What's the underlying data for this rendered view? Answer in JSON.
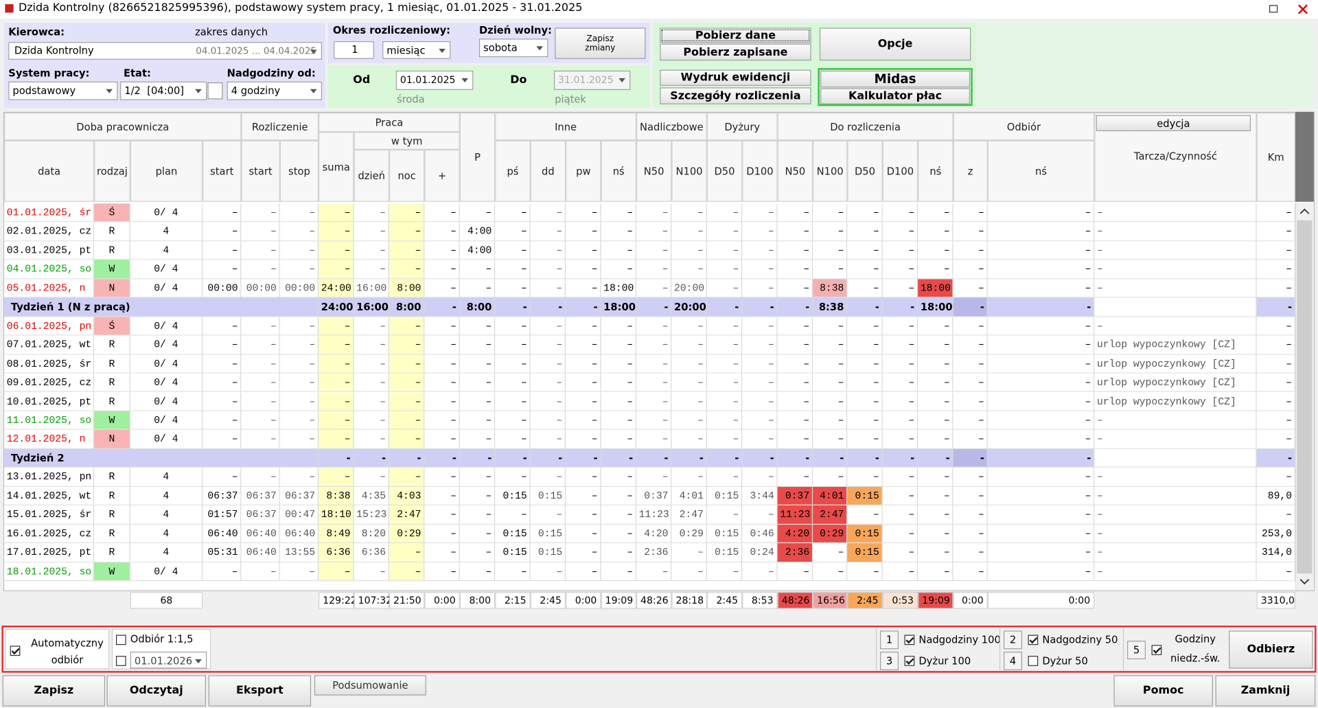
{
  "form": {
    "title": "Dzida Kontrolny (8266521825995396), podstawowy system pracy, 1 miesiąc, 01.01.2025 - 31.01.2025",
    "driver": {
      "label": "Kierowca:",
      "range_label": "zakres danych",
      "name": "Dzida Kontrolny",
      "range": "04.01.2025 ... 04.04.2025"
    },
    "system": {
      "label": "System pracy:",
      "value": "podstawowy"
    },
    "etat": {
      "label": "Etat:",
      "value": "1/2  [04:00]"
    },
    "overtime": {
      "label": "Nadgodziny od:",
      "value": "4 godziny"
    },
    "period": {
      "label": "Okres rozliczeniowy:",
      "count": "1",
      "unit": "miesiąc"
    },
    "day_off": {
      "label": "Dzień wolny:",
      "value": "sobota"
    },
    "save_changes": "Zapisz zmiany",
    "from": {
      "label": "Od",
      "date": "01.01.2025",
      "weekday": "środa"
    },
    "to": {
      "label": "Do",
      "date": "31.01.2025",
      "weekday": "piątek"
    },
    "buttons": {
      "fetch": "Pobierz dane",
      "fetch_saved": "Pobierz zapisane",
      "options": "Opcje",
      "print": "Wydruk ewidencji",
      "details": "Szczegóły rozliczenia",
      "midas": "Midas",
      "payroll": "Kalkulator płac"
    }
  },
  "table": {
    "groups": [
      {
        "label": "Doba pracownicza",
        "from": 0,
        "to": 3
      },
      {
        "label": "Rozliczenie",
        "from": 4,
        "to": 5
      },
      {
        "label": "Praca",
        "from": 6,
        "to": 9
      },
      {
        "label": "Inne",
        "from": 11,
        "to": 14
      },
      {
        "label": "Nadliczbowe",
        "from": 15,
        "to": 16
      },
      {
        "label": "Dyżury",
        "from": 17,
        "to": 18
      },
      {
        "label": "Do rozliczenia",
        "from": 19,
        "to": 23
      },
      {
        "label": "Odbiór",
        "from": 24,
        "to": 25
      }
    ],
    "sub_group": {
      "label": "w tym",
      "from": 7,
      "to": 9
    },
    "edit_button": "edycja",
    "columns": [
      "data",
      "rodzaj",
      "plan",
      "start",
      "start",
      "stop",
      "suma",
      "dzień",
      "noc",
      "+",
      "P",
      "pś",
      "dd",
      "pw",
      "nś",
      "N50",
      "N100",
      "D50",
      "D100",
      "N50",
      "N100",
      "D50",
      "D100",
      "nś",
      "z",
      "nś",
      "Tarcza/Czynność",
      "Km"
    ],
    "rows": [
      {
        "tone": "holiday",
        "cells": [
          "01.01.2025, śr",
          "Ś",
          "0/ 4",
          "–",
          "–",
          "–",
          "–",
          "–",
          "–",
          "–",
          "–",
          "–",
          "–",
          "–",
          "–",
          "–",
          "–",
          "–",
          "–",
          "–",
          "–",
          "–",
          "–",
          "–",
          "–",
          "–",
          "–",
          "–"
        ]
      },
      {
        "tone": "work",
        "cells": [
          "02.01.2025, cz",
          "R",
          "4",
          "–",
          "–",
          "–",
          "–",
          "–",
          "–",
          "–",
          "4:00",
          "–",
          "–",
          "–",
          "–",
          "–",
          "–",
          "–",
          "–",
          "–",
          "–",
          "–",
          "–",
          "–",
          "–",
          "–",
          "–",
          "–"
        ]
      },
      {
        "tone": "work",
        "cells": [
          "03.01.2025, pt",
          "R",
          "4",
          "–",
          "–",
          "–",
          "–",
          "–",
          "–",
          "–",
          "4:00",
          "–",
          "–",
          "–",
          "–",
          "–",
          "–",
          "–",
          "–",
          "–",
          "–",
          "–",
          "–",
          "–",
          "–",
          "–",
          "–",
          "–"
        ]
      },
      {
        "tone": "free",
        "cells": [
          "04.01.2025, so",
          "W",
          "0/ 4",
          "–",
          "–",
          "–",
          "–",
          "–",
          "–",
          "–",
          "–",
          "–",
          "–",
          "–",
          "–",
          "–",
          "–",
          "–",
          "–",
          "–",
          "–",
          "–",
          "–",
          "–",
          "–",
          "–",
          "–",
          "–"
        ]
      },
      {
        "tone": "holiday",
        "cells": [
          "05.01.2025, n",
          "N",
          "0/ 4",
          "00:00",
          "00:00",
          "00:00",
          "24:00",
          "16:00",
          "8:00",
          "–",
          "–",
          "–",
          "–",
          "–",
          "18:00",
          "–",
          "20:00",
          "–",
          "–",
          "–",
          "8:38",
          "–",
          "–",
          "18:00",
          "–",
          "–",
          "–",
          "–"
        ],
        "hl": {
          "20": "#f4b0b0",
          "23": "#e84a4a"
        }
      },
      {
        "tone": "week",
        "cells": [
          "Tydzień 1 (N z pracą)",
          null,
          null,
          null,
          null,
          null,
          "24:00",
          "16:00",
          "8:00",
          "-",
          "8:00",
          "-",
          "-",
          "-",
          "18:00",
          "-",
          "20:00",
          "-",
          "-",
          "-",
          "8:38",
          "-",
          "-",
          "18:00",
          "-",
          "-",
          null,
          "-"
        ]
      },
      {
        "tone": "holiday",
        "cells": [
          "06.01.2025, pn",
          "Ś",
          "0/ 4",
          "–",
          "–",
          "–",
          "–",
          "–",
          "–",
          "–",
          "–",
          "–",
          "–",
          "–",
          "–",
          "–",
          "–",
          "–",
          "–",
          "–",
          "–",
          "–",
          "–",
          "–",
          "–",
          "–",
          "–",
          "–"
        ]
      },
      {
        "tone": "work",
        "cells": [
          "07.01.2025, wt",
          "R",
          "0/ 4",
          "–",
          "–",
          "–",
          "–",
          "–",
          "–",
          "–",
          "–",
          "–",
          "–",
          "–",
          "–",
          "–",
          "–",
          "–",
          "–",
          "–",
          "–",
          "–",
          "–",
          "–",
          "–",
          "–",
          "urlop wypoczynkowy [CZ]",
          "–"
        ]
      },
      {
        "tone": "work",
        "cells": [
          "08.01.2025, śr",
          "R",
          "0/ 4",
          "–",
          "–",
          "–",
          "–",
          "–",
          "–",
          "–",
          "–",
          "–",
          "–",
          "–",
          "–",
          "–",
          "–",
          "–",
          "–",
          "–",
          "–",
          "–",
          "–",
          "–",
          "–",
          "–",
          "urlop wypoczynkowy [CZ]",
          "–"
        ]
      },
      {
        "tone": "work",
        "cells": [
          "09.01.2025, cz",
          "R",
          "0/ 4",
          "–",
          "–",
          "–",
          "–",
          "–",
          "–",
          "–",
          "–",
          "–",
          "–",
          "–",
          "–",
          "–",
          "–",
          "–",
          "–",
          "–",
          "–",
          "–",
          "–",
          "–",
          "–",
          "–",
          "urlop wypoczynkowy [CZ]",
          "–"
        ]
      },
      {
        "tone": "work",
        "cells": [
          "10.01.2025, pt",
          "R",
          "0/ 4",
          "–",
          "–",
          "–",
          "–",
          "–",
          "–",
          "–",
          "–",
          "–",
          "–",
          "–",
          "–",
          "–",
          "–",
          "–",
          "–",
          "–",
          "–",
          "–",
          "–",
          "–",
          "–",
          "–",
          "urlop wypoczynkowy [CZ]",
          "–"
        ]
      },
      {
        "tone": "free",
        "cells": [
          "11.01.2025, so",
          "W",
          "0/ 4",
          "–",
          "–",
          "–",
          "–",
          "–",
          "–",
          "–",
          "–",
          "–",
          "–",
          "–",
          "–",
          "–",
          "–",
          "–",
          "–",
          "–",
          "–",
          "–",
          "–",
          "–",
          "–",
          "–",
          "–",
          "–"
        ]
      },
      {
        "tone": "holiday",
        "cells": [
          "12.01.2025, n",
          "N",
          "0/ 4",
          "–",
          "–",
          "–",
          "–",
          "–",
          "–",
          "–",
          "–",
          "–",
          "–",
          "–",
          "–",
          "–",
          "–",
          "–",
          "–",
          "–",
          "–",
          "–",
          "–",
          "–",
          "–",
          "–",
          "–",
          "–"
        ]
      },
      {
        "tone": "week",
        "cells": [
          "Tydzień 2",
          null,
          null,
          null,
          null,
          null,
          "-",
          "-",
          "-",
          "-",
          "-",
          "-",
          "-",
          "-",
          "-",
          "-",
          "-",
          "-",
          "-",
          "-",
          "-",
          "-",
          "-",
          "-",
          "-",
          "-",
          null,
          "-"
        ]
      },
      {
        "tone": "work",
        "cells": [
          "13.01.2025, pn",
          "R",
          "4",
          "–",
          "–",
          "–",
          "–",
          "–",
          "–",
          "–",
          "–",
          "–",
          "–",
          "–",
          "–",
          "–",
          "–",
          "–",
          "–",
          "–",
          "–",
          "–",
          "–",
          "–",
          "–",
          "–",
          "–",
          "–"
        ]
      },
      {
        "tone": "work",
        "cells": [
          "14.01.2025, wt",
          "R",
          "4",
          "06:37",
          "06:37",
          "06:37",
          "8:38",
          "4:35",
          "4:03",
          "–",
          "–",
          "0:15",
          "0:15",
          "–",
          "–",
          "0:37",
          "4:01",
          "0:15",
          "3:44",
          "0:37",
          "4:01",
          "0:15",
          "–",
          "–",
          "–",
          "–",
          "–",
          "89,0"
        ],
        "hl": {
          "19": "#e84a4a",
          "20": "#e84a4a",
          "21": "#f7a65a"
        }
      },
      {
        "tone": "work",
        "cells": [
          "15.01.2025, śr",
          "R",
          "4",
          "01:57",
          "06:37",
          "00:47",
          "18:10",
          "15:23",
          "2:47",
          "–",
          "–",
          "–",
          "–",
          "–",
          "–",
          "11:23",
          "2:47",
          "–",
          "–",
          "11:23",
          "2:47",
          "–",
          "–",
          "–",
          "–",
          "–",
          "–",
          "–"
        ],
        "hl": {
          "19": "#e84a4a",
          "20": "#e84a4a"
        }
      },
      {
        "tone": "work",
        "cells": [
          "16.01.2025, cz",
          "R",
          "4",
          "06:40",
          "06:40",
          "06:40",
          "8:49",
          "8:20",
          "0:29",
          "–",
          "–",
          "0:15",
          "0:15",
          "–",
          "–",
          "4:20",
          "0:29",
          "0:15",
          "0:46",
          "4:20",
          "0:29",
          "0:15",
          "–",
          "–",
          "–",
          "–",
          "–",
          "253,0"
        ],
        "hl": {
          "19": "#e84a4a",
          "20": "#e84a4a",
          "21": "#f7a65a"
        }
      },
      {
        "tone": "work",
        "cells": [
          "17.01.2025, pt",
          "R",
          "4",
          "05:31",
          "06:40",
          "13:55",
          "6:36",
          "6:36",
          "–",
          "–",
          "–",
          "0:15",
          "0:15",
          "–",
          "–",
          "2:36",
          "–",
          "0:15",
          "0:24",
          "2:36",
          "–",
          "0:15",
          "–",
          "–",
          "–",
          "–",
          "–",
          "314,0"
        ],
        "hl": {
          "19": "#e84a4a",
          "21": "#f7a65a"
        }
      },
      {
        "tone": "free",
        "cells": [
          "18.01.2025, so",
          "W",
          "0/ 4",
          "–",
          "–",
          "–",
          "–",
          "–",
          "–",
          "–",
          "–",
          "–",
          "–",
          "–",
          "–",
          "–",
          "–",
          "–",
          "–",
          "–",
          "–",
          "–",
          "–",
          "–",
          "–",
          "–",
          "–",
          "–"
        ]
      }
    ],
    "totals": {
      "cells": [
        null,
        null,
        "68",
        null,
        null,
        null,
        "129:22",
        "107:32",
        "21:50",
        "0:00",
        "8:00",
        "2:15",
        "2:45",
        "0:00",
        "19:09",
        "48:26",
        "28:18",
        "2:45",
        "8:53",
        "48:26",
        "16:56",
        "2:45",
        "0:53",
        "19:09",
        "0:00",
        "0:00",
        null,
        "3310,0"
      ],
      "hl": {
        "19": "#e84a4a",
        "20": "#f0a0a0",
        "21": "#f7a65a",
        "22": "#f8e4d4",
        "23": "#e84a4a"
      }
    }
  },
  "bottom": {
    "auto": {
      "label": "Automatyczny odbiór",
      "checked": true
    },
    "ratio": {
      "label": "Odbiór 1:1,5",
      "checked": false
    },
    "date": {
      "value": "01.01.2026",
      "checked": false
    },
    "options": [
      {
        "key": "1",
        "label": "Nadgodziny 100",
        "checked": true
      },
      {
        "key": "3",
        "label": "Dyżur 100",
        "checked": true
      },
      {
        "key": "2",
        "label": "Nadgodziny 50",
        "checked": true
      },
      {
        "key": "4",
        "label": "Dyżur 50",
        "checked": false
      },
      {
        "key": "5",
        "label": "Godziny niedz.-św.",
        "checked": true
      }
    ],
    "collect": "Odbierz"
  },
  "actions": {
    "save": "Zapisz",
    "read": "Odczytaj",
    "export": "Eksport",
    "summary": "Podsumowanie",
    "help": "Pomoc",
    "close": "Zamknij"
  }
}
